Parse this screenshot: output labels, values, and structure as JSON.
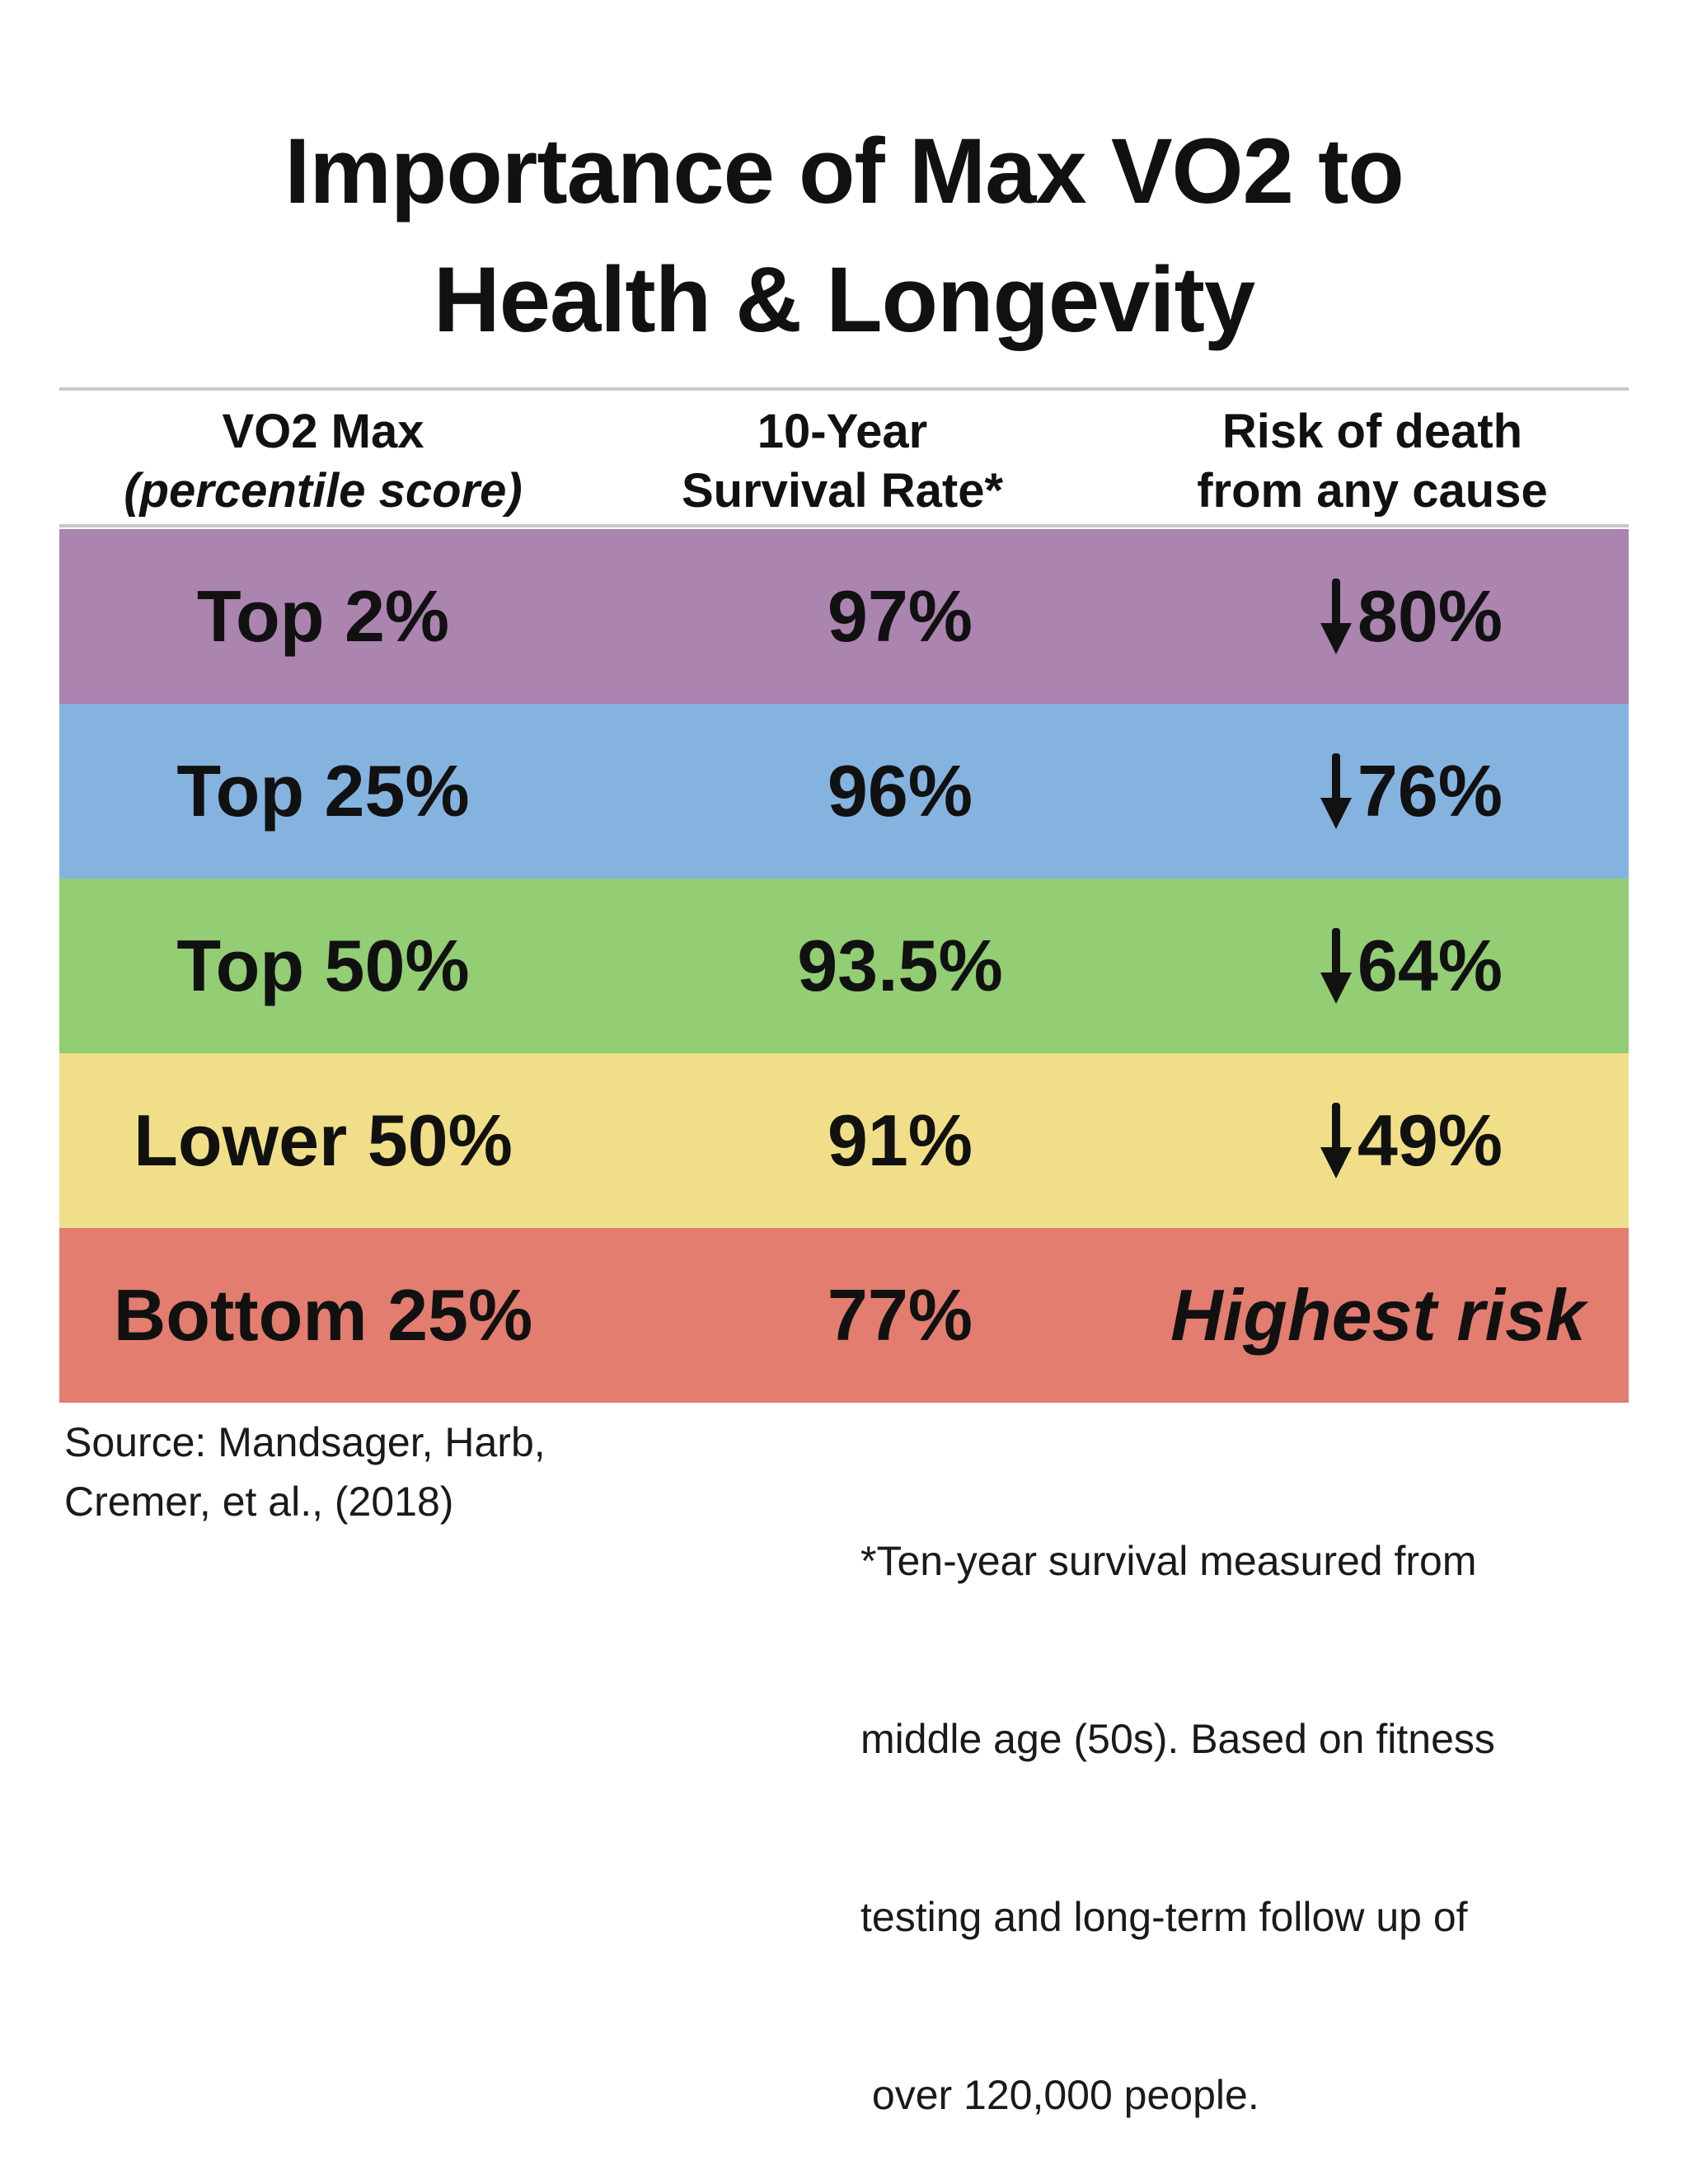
{
  "chart_data": {
    "type": "table",
    "title": "Importance of Max VO2 to Health & Longevity",
    "columns": [
      {
        "title": "VO2 Max",
        "subtitle": "(percentile score)"
      },
      {
        "title": "10-Year",
        "subtitle": "Survival Rate*"
      },
      {
        "title": "Risk of death",
        "subtitle": "from any cause"
      }
    ],
    "rows": [
      {
        "group": "Top 2%",
        "survival": "97%",
        "survival_value": 97,
        "risk": "80%",
        "risk_reduction": 80,
        "risk_direction": "down",
        "color": "#ab84b0"
      },
      {
        "group": "Top 25%",
        "survival": "96%",
        "survival_value": 96,
        "risk": "76%",
        "risk_reduction": 76,
        "risk_direction": "down",
        "color": "#85b3e0"
      },
      {
        "group": "Top 50%",
        "survival": "93.5%",
        "survival_value": 93.5,
        "risk": "64%",
        "risk_reduction": 64,
        "risk_direction": "down",
        "color": "#93cd74"
      },
      {
        "group": "Lower 50%",
        "survival": "91%",
        "survival_value": 91,
        "risk": "49%",
        "risk_reduction": 49,
        "risk_direction": "down",
        "color": "#f0df88"
      },
      {
        "group": "Bottom 25%",
        "survival": "77%",
        "survival_value": 77,
        "risk": "Highest risk",
        "risk_reduction": null,
        "risk_direction": "none",
        "color": "#e27d6f"
      }
    ],
    "source": "Source: Mandsager, Harb, Cremer, et al., (2018)",
    "footnote": "*Ten-year survival measured from middle age (50s). Based on fitness testing and long-term follow up of over 120,000 people."
  },
  "title_lines": [
    "Importance of Max VO2 to",
    "Health & Longevity"
  ],
  "source_lines": [
    "Source: Mandsager, Harb,",
    "Cremer, et al., (2018)"
  ],
  "footnote_lines": [
    "*Ten-year survival measured from",
    "middle age (50s). Based on fitness",
    "testing and long-term follow up of",
    " over 120,000 people."
  ]
}
